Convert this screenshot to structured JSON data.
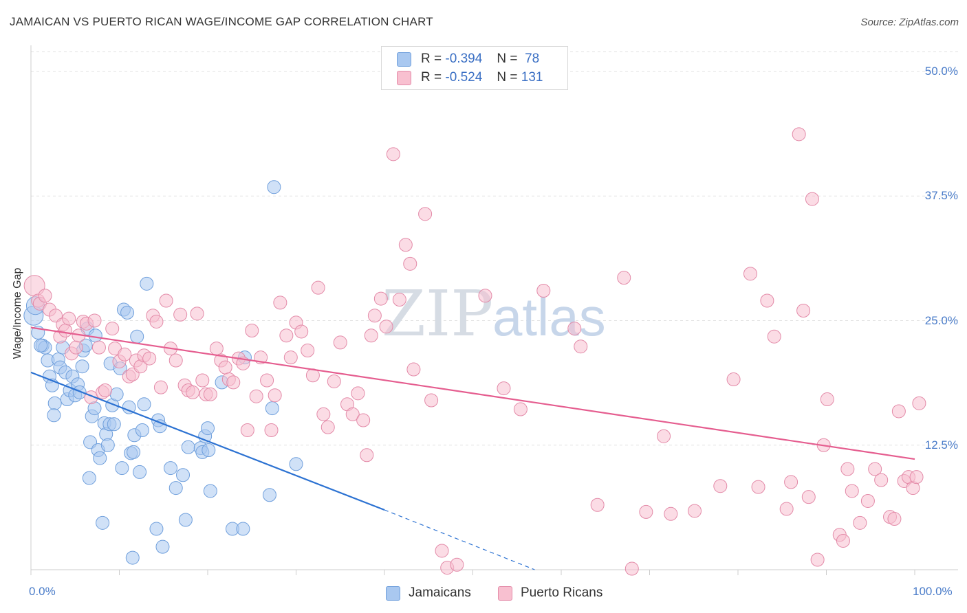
{
  "title": "JAMAICAN VS PUERTO RICAN WAGE/INCOME GAP CORRELATION CHART",
  "source": "Source: ZipAtlas.com",
  "watermark": {
    "zip": "ZIP",
    "atlas": "atlas"
  },
  "legend": [
    {
      "r_label": "R =",
      "r_value": "-0.394",
      "n_label": "N =",
      "n_value": "78",
      "color": "#a9c8f0",
      "border": "#6f9fdc"
    },
    {
      "r_label": "R =",
      "r_value": "-0.524",
      "n_label": "N =",
      "n_value": "131",
      "color": "#f8c0d0",
      "border": "#e38aa8"
    }
  ],
  "chart_data": {
    "type": "scatter",
    "title": "JAMAICAN VS PUERTO RICAN WAGE/INCOME GAP CORRELATION CHART",
    "xlabel": "",
    "ylabel": "Wage/Income Gap",
    "xlim": [
      0,
      100
    ],
    "ylim": [
      0,
      52
    ],
    "x_tick_labels": [
      "0.0%",
      "100.0%"
    ],
    "y_ticks": [
      12.5,
      25.0,
      37.5,
      50.0
    ],
    "y_tick_labels": [
      "12.5%",
      "25.0%",
      "37.5%",
      "50.0%"
    ],
    "grid": true,
    "series": [
      {
        "name": "Jamaicans",
        "color": "#6f9fdc",
        "fill": "#a9c8f0",
        "line_color": "#2c72d2",
        "trend": {
          "x0": 0,
          "y0": 19.8,
          "x1": 40,
          "y1": 6.0,
          "dash_x1": 57,
          "dash_y1": 0
        },
        "points": [
          [
            0.3,
            25.5
          ],
          [
            0.8,
            23.8
          ],
          [
            1.3,
            22.5
          ],
          [
            1.6,
            22.3
          ],
          [
            1.9,
            21.0
          ],
          [
            2.1,
            19.4
          ],
          [
            2.4,
            18.5
          ],
          [
            2.7,
            16.7
          ],
          [
            2.6,
            15.5
          ],
          [
            3.1,
            21.1
          ],
          [
            3.3,
            20.3
          ],
          [
            3.6,
            22.3
          ],
          [
            3.9,
            19.8
          ],
          [
            4.1,
            17.1
          ],
          [
            4.4,
            18.0
          ],
          [
            4.7,
            19.4
          ],
          [
            5.0,
            17.5
          ],
          [
            5.3,
            18.6
          ],
          [
            5.5,
            17.8
          ],
          [
            5.8,
            20.4
          ],
          [
            5.9,
            22.0
          ],
          [
            6.2,
            22.5
          ],
          [
            6.4,
            24.2
          ],
          [
            6.6,
            9.2
          ],
          [
            6.7,
            12.8
          ],
          [
            6.9,
            15.4
          ],
          [
            7.2,
            16.2
          ],
          [
            7.3,
            23.5
          ],
          [
            7.6,
            12.0
          ],
          [
            7.8,
            11.2
          ],
          [
            8.1,
            4.7
          ],
          [
            8.3,
            14.7
          ],
          [
            8.5,
            13.6
          ],
          [
            8.7,
            12.5
          ],
          [
            8.9,
            14.6
          ],
          [
            9.0,
            20.7
          ],
          [
            9.2,
            16.5
          ],
          [
            9.4,
            14.6
          ],
          [
            9.7,
            17.6
          ],
          [
            10.1,
            20.2
          ],
          [
            10.3,
            10.2
          ],
          [
            10.5,
            26.1
          ],
          [
            10.9,
            25.8
          ],
          [
            11.1,
            16.3
          ],
          [
            11.3,
            11.7
          ],
          [
            11.6,
            11.8
          ],
          [
            11.7,
            13.5
          ],
          [
            12.0,
            23.4
          ],
          [
            12.3,
            9.8
          ],
          [
            12.6,
            14.0
          ],
          [
            12.8,
            16.6
          ],
          [
            13.1,
            28.7
          ],
          [
            14.2,
            4.1
          ],
          [
            14.4,
            15.0
          ],
          [
            14.6,
            14.4
          ],
          [
            14.9,
            2.3
          ],
          [
            15.8,
            10.2
          ],
          [
            16.4,
            8.2
          ],
          [
            17.2,
            9.5
          ],
          [
            17.5,
            5.0
          ],
          [
            17.8,
            12.3
          ],
          [
            19.2,
            12.2
          ],
          [
            19.4,
            11.8
          ],
          [
            19.7,
            13.4
          ],
          [
            20.0,
            14.2
          ],
          [
            20.1,
            12.0
          ],
          [
            20.3,
            7.9
          ],
          [
            21.6,
            18.8
          ],
          [
            22.8,
            4.1
          ],
          [
            24.0,
            4.1
          ],
          [
            24.2,
            21.3
          ],
          [
            27.0,
            7.5
          ],
          [
            27.3,
            16.2
          ],
          [
            27.5,
            38.4
          ],
          [
            30.0,
            10.6
          ],
          [
            11.5,
            1.2
          ],
          [
            0.5,
            26.5
          ],
          [
            1.1,
            22.5
          ]
        ],
        "point_sizes": "small except first two large"
      },
      {
        "name": "Puerto Ricans",
        "color": "#e38aa8",
        "fill": "#f8c0d0",
        "line_color": "#e55d8f",
        "trend": {
          "x0": 0,
          "y0": 24.3,
          "x1": 100,
          "y1": 11.1
        },
        "points": [
          [
            0.4,
            28.5
          ],
          [
            0.8,
            27.0
          ],
          [
            1.0,
            26.7
          ],
          [
            1.6,
            27.5
          ],
          [
            2.1,
            26.1
          ],
          [
            2.8,
            25.5
          ],
          [
            3.3,
            23.4
          ],
          [
            3.6,
            24.6
          ],
          [
            3.9,
            24.0
          ],
          [
            4.3,
            25.2
          ],
          [
            4.6,
            21.7
          ],
          [
            5.1,
            22.3
          ],
          [
            5.4,
            23.5
          ],
          [
            5.9,
            24.9
          ],
          [
            6.3,
            24.7
          ],
          [
            6.8,
            17.3
          ],
          [
            7.2,
            25.0
          ],
          [
            7.7,
            22.3
          ],
          [
            8.1,
            17.8
          ],
          [
            8.4,
            18.0
          ],
          [
            9.2,
            24.2
          ],
          [
            9.5,
            22.2
          ],
          [
            10.0,
            20.9
          ],
          [
            10.6,
            21.6
          ],
          [
            11.1,
            19.4
          ],
          [
            11.5,
            19.6
          ],
          [
            11.9,
            21.0
          ],
          [
            12.4,
            20.4
          ],
          [
            12.8,
            21.5
          ],
          [
            13.4,
            21.2
          ],
          [
            13.8,
            25.5
          ],
          [
            14.2,
            24.9
          ],
          [
            14.7,
            18.3
          ],
          [
            15.3,
            27.0
          ],
          [
            15.8,
            22.2
          ],
          [
            16.4,
            21.0
          ],
          [
            16.9,
            25.6
          ],
          [
            17.4,
            18.5
          ],
          [
            17.8,
            18.0
          ],
          [
            18.3,
            17.8
          ],
          [
            18.8,
            25.7
          ],
          [
            19.4,
            19.0
          ],
          [
            19.8,
            17.6
          ],
          [
            20.3,
            17.6
          ],
          [
            21.0,
            22.2
          ],
          [
            21.5,
            21.0
          ],
          [
            22.0,
            20.3
          ],
          [
            22.4,
            19.1
          ],
          [
            22.9,
            18.8
          ],
          [
            23.5,
            21.2
          ],
          [
            24.0,
            20.7
          ],
          [
            24.5,
            14.0
          ],
          [
            25.0,
            24.0
          ],
          [
            25.5,
            17.4
          ],
          [
            26.0,
            21.3
          ],
          [
            26.7,
            19.0
          ],
          [
            27.2,
            14.0
          ],
          [
            27.6,
            17.5
          ],
          [
            28.2,
            26.8
          ],
          [
            28.9,
            23.5
          ],
          [
            29.4,
            21.3
          ],
          [
            30.0,
            24.8
          ],
          [
            30.6,
            23.9
          ],
          [
            31.3,
            22.0
          ],
          [
            31.9,
            19.5
          ],
          [
            32.5,
            28.3
          ],
          [
            33.1,
            15.6
          ],
          [
            33.6,
            14.3
          ],
          [
            34.3,
            18.9
          ],
          [
            35.0,
            22.8
          ],
          [
            35.8,
            16.6
          ],
          [
            36.4,
            15.6
          ],
          [
            37.0,
            17.7
          ],
          [
            37.6,
            15.0
          ],
          [
            38.0,
            11.5
          ],
          [
            38.5,
            23.5
          ],
          [
            38.9,
            25.5
          ],
          [
            39.6,
            27.2
          ],
          [
            40.2,
            24.4
          ],
          [
            41.0,
            41.7
          ],
          [
            41.7,
            27.1
          ],
          [
            42.4,
            32.6
          ],
          [
            42.9,
            30.7
          ],
          [
            43.3,
            20.1
          ],
          [
            44.6,
            35.7
          ],
          [
            45.3,
            17.0
          ],
          [
            46.5,
            1.9
          ],
          [
            47.1,
            0.2
          ],
          [
            48.2,
            0.5
          ],
          [
            51.4,
            27.5
          ],
          [
            53.5,
            18.2
          ],
          [
            55.4,
            16.1
          ],
          [
            58.0,
            28.0
          ],
          [
            61.5,
            24.2
          ],
          [
            62.2,
            22.4
          ],
          [
            64.1,
            6.5
          ],
          [
            67.1,
            29.3
          ],
          [
            68.0,
            0.1
          ],
          [
            69.6,
            5.8
          ],
          [
            71.6,
            13.4
          ],
          [
            72.4,
            5.6
          ],
          [
            75.1,
            5.9
          ],
          [
            78.0,
            8.4
          ],
          [
            79.5,
            19.1
          ],
          [
            81.4,
            29.7
          ],
          [
            82.3,
            8.3
          ],
          [
            83.3,
            27.0
          ],
          [
            84.1,
            23.4
          ],
          [
            85.5,
            6.1
          ],
          [
            86.0,
            8.8
          ],
          [
            86.9,
            43.7
          ],
          [
            87.4,
            26.0
          ],
          [
            88.0,
            7.3
          ],
          [
            88.4,
            37.2
          ],
          [
            89.0,
            1.0
          ],
          [
            90.1,
            17.1
          ],
          [
            91.5,
            3.5
          ],
          [
            91.9,
            2.9
          ],
          [
            92.4,
            10.1
          ],
          [
            92.9,
            7.9
          ],
          [
            93.8,
            4.7
          ],
          [
            94.7,
            6.9
          ],
          [
            95.5,
            10.1
          ],
          [
            96.2,
            9.0
          ],
          [
            97.2,
            5.3
          ],
          [
            97.7,
            5.1
          ],
          [
            98.2,
            15.9
          ],
          [
            98.8,
            8.9
          ],
          [
            99.3,
            9.3
          ],
          [
            99.8,
            8.2
          ],
          [
            100.2,
            9.3
          ],
          [
            100.5,
            16.7
          ],
          [
            89.7,
            12.5
          ]
        ]
      }
    ]
  },
  "x_labels": {
    "left": "0.0%",
    "right": "100.0%"
  }
}
